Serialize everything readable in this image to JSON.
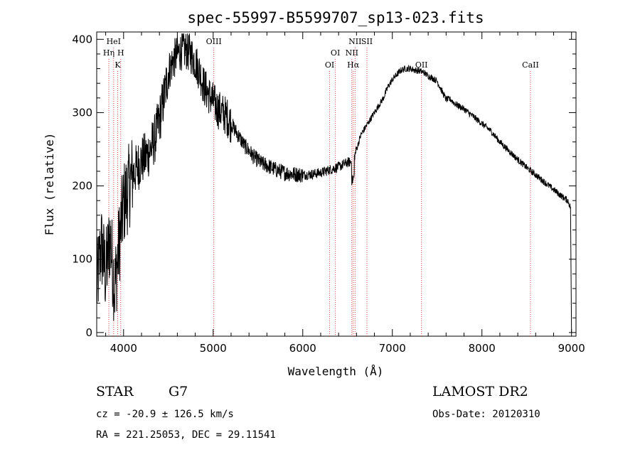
{
  "chart_data": {
    "type": "line",
    "title": "spec-55997-B5599707_sp13-023.fits",
    "xlabel": "Wavelength (Å)",
    "ylabel": "Flux (relative)",
    "xlim": [
      3700,
      9050
    ],
    "ylim": [
      -5,
      410
    ],
    "x_ticks": [
      4000,
      5000,
      6000,
      7000,
      8000,
      9000
    ],
    "y_ticks": [
      0,
      100,
      200,
      300,
      400
    ],
    "grid": false,
    "line_color": "#000000",
    "marker_color": "#e04040",
    "series": [
      {
        "x": [
          3700,
          3750,
          3800,
          3850,
          3900,
          3950,
          4000,
          4050,
          4100,
          4150,
          4200,
          4250,
          4300,
          4350,
          4400,
          4450,
          4500,
          4550,
          4600,
          4650,
          4700,
          4750,
          4800,
          4850,
          4900,
          4950,
          5000,
          5050,
          5100,
          5150,
          5200,
          5250,
          5300,
          5350,
          5400,
          5450,
          5500,
          5550,
          5600,
          5650,
          5700,
          5800,
          5900,
          6000,
          6100,
          6200,
          6300,
          6400,
          6500,
          6560,
          6600,
          6650,
          6700,
          6750,
          6800,
          6850,
          6900,
          6950,
          7000,
          7050,
          7100,
          7150,
          7200,
          7250,
          7300,
          7350,
          7400,
          7450,
          7500,
          7550,
          7600,
          7650,
          7700,
          7800,
          7900,
          8000,
          8100,
          8200,
          8300,
          8400,
          8500,
          8600,
          8700,
          8800,
          8900,
          8960,
          8990,
          9000
        ],
        "y": [
          60,
          120,
          80,
          130,
          60,
          120,
          175,
          195,
          215,
          225,
          235,
          240,
          250,
          265,
          290,
          320,
          355,
          370,
          380,
          385,
          385,
          380,
          370,
          355,
          335,
          325,
          315,
          305,
          300,
          295,
          285,
          275,
          265,
          255,
          248,
          240,
          235,
          230,
          228,
          225,
          222,
          218,
          216,
          215,
          216,
          218,
          222,
          226,
          232,
          233,
          250,
          270,
          280,
          290,
          300,
          310,
          320,
          335,
          345,
          352,
          358,
          360,
          360,
          358,
          357,
          355,
          350,
          347,
          343,
          330,
          318,
          318,
          312,
          305,
          295,
          285,
          275,
          260,
          248,
          236,
          225,
          215,
          205,
          195,
          185,
          180,
          170,
          0
        ]
      }
    ],
    "lines": [
      {
        "label": "HeI",
        "x": 3889,
        "row": 1
      },
      {
        "label": "Hη",
        "x": 3835,
        "row": 2
      },
      {
        "label": "H",
        "x": 3968,
        "row": 2
      },
      {
        "label": "K",
        "x": 3934,
        "row": 3
      },
      {
        "label": "OIII",
        "x": 5007,
        "row": 1
      },
      {
        "label": "OI",
        "x": 6364,
        "row": 2
      },
      {
        "label": "OI",
        "x": 6300,
        "row": 3
      },
      {
        "label": "NII",
        "x": 6584,
        "row": 1
      },
      {
        "label": "SII",
        "x": 6716,
        "row": 1
      },
      {
        "label": "NII",
        "x": 6548,
        "row": 2
      },
      {
        "label": "Hα",
        "x": 6563,
        "row": 3
      },
      {
        "label": "OII",
        "x": 7325,
        "row": 3
      },
      {
        "label": "CaII",
        "x": 8542,
        "row": 3
      }
    ]
  },
  "info": {
    "object_class": "STAR",
    "subclass": "G7",
    "survey": "LAMOST DR2",
    "cz": "cz = -20.9 ± 126.5 km/s",
    "obs_date": "Obs-Date: 20120310",
    "coords": "RA = 221.25053, DEC =  29.11541"
  }
}
